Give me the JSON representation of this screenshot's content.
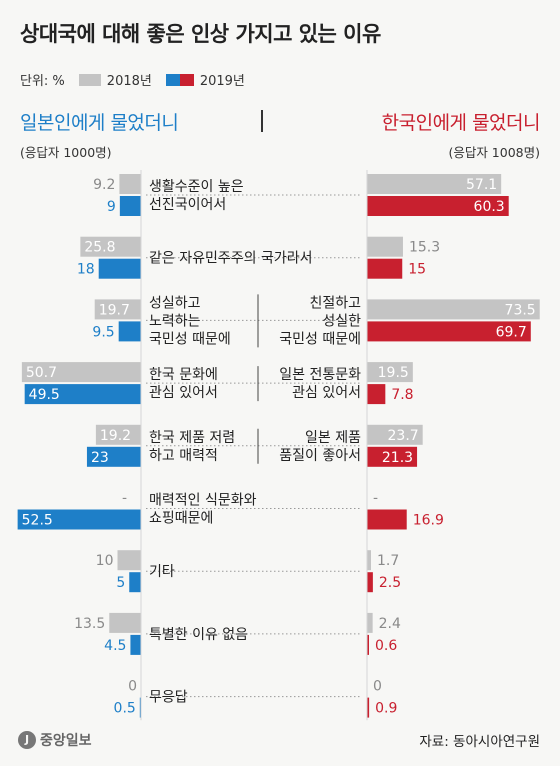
{
  "title": "상대국에 대해 좋은 인상 가지고 있는 이유",
  "legend": {
    "unit_label": "단위: %",
    "label_2018": "2018년",
    "label_2019": "2019년"
  },
  "left_header": {
    "title": "일본인에게 물었더니",
    "respondents": "(응답자 1000명)"
  },
  "right_header": {
    "title": "한국인에게 물었더니",
    "respondents": "(응답자 1008명)"
  },
  "source": "자료: 동아시아연구원",
  "logo": {
    "mark": "J",
    "text": "중앙일보"
  },
  "colors": {
    "gray_2018": "#c4c4c4",
    "blue_2019": "#1e7fc8",
    "red_2019": "#c8202f",
    "label_gray": "#8a8a8a"
  },
  "chart_data": {
    "type": "bar",
    "unit": "%",
    "series_names": [
      "2018년",
      "2019년"
    ],
    "rows": [
      {
        "left_label": [
          "생활수준이 높은",
          "선진국이어서"
        ],
        "right_label": [],
        "shared": true,
        "japan": {
          "2018": 9.2,
          "2019": 9
        },
        "korea": {
          "2018": 57.1,
          "2019": 60.3
        }
      },
      {
        "left_label": [
          "같은 자유민주주의 국가라서"
        ],
        "right_label": [],
        "shared": true,
        "japan": {
          "2018": 25.8,
          "2019": 18
        },
        "korea": {
          "2018": 15.3,
          "2019": 15
        }
      },
      {
        "left_label": [
          "성실하고",
          "노력하는",
          "국민성 때문에"
        ],
        "right_label": [
          "친절하고",
          "성실한",
          "국민성 때문에"
        ],
        "shared": false,
        "japan": {
          "2018": 19.7,
          "2019": 9.5
        },
        "korea": {
          "2018": 73.5,
          "2019": 69.7
        }
      },
      {
        "left_label": [
          "한국 문화에",
          "관심 있어서"
        ],
        "right_label": [
          "일본 전통문화",
          "관심 있어서"
        ],
        "shared": false,
        "japan": {
          "2018": 50.7,
          "2019": 49.5
        },
        "korea": {
          "2018": 19.5,
          "2019": 7.8
        }
      },
      {
        "left_label": [
          "한국 제품 저렴",
          "하고 매력적"
        ],
        "right_label": [
          "일본 제품",
          "품질이 좋아서"
        ],
        "shared": false,
        "japan": {
          "2018": 19.2,
          "2019": 23
        },
        "korea": {
          "2018": 23.7,
          "2019": 21.3
        }
      },
      {
        "left_label": [
          "매력적인 식문화와",
          "쇼핑때문에"
        ],
        "right_label": [],
        "shared": true,
        "japan": {
          "2018": null,
          "2019": 52.5
        },
        "korea": {
          "2018": null,
          "2019": 16.9
        }
      },
      {
        "left_label": [
          "기타"
        ],
        "right_label": [],
        "shared": true,
        "japan": {
          "2018": 10,
          "2019": 5
        },
        "korea": {
          "2018": 1.7,
          "2019": 2.5
        }
      },
      {
        "left_label": [
          "특별한 이유 없음"
        ],
        "right_label": [],
        "shared": true,
        "japan": {
          "2018": 13.5,
          "2019": 4.5
        },
        "korea": {
          "2018": 2.4,
          "2019": 0.6
        }
      },
      {
        "left_label": [
          "무응답"
        ],
        "right_label": [],
        "shared": true,
        "japan": {
          "2018": 0,
          "2019": 0.5
        },
        "korea": {
          "2018": 0,
          "2019": 0.9
        }
      }
    ],
    "missing_marker": "-"
  }
}
